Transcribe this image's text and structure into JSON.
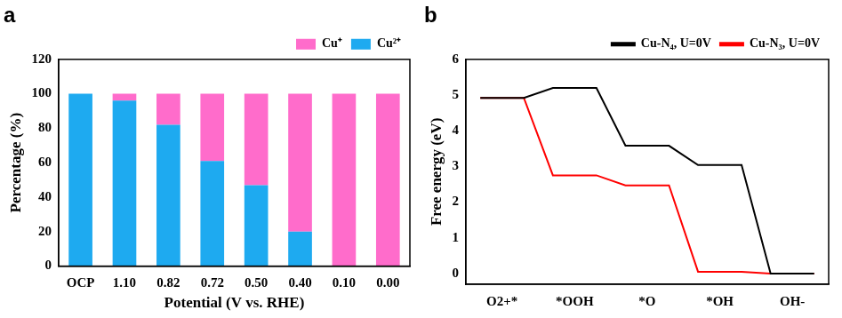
{
  "chart_data": [
    {
      "type": "bar",
      "title": "a",
      "x_label": "Potential (V vs. RHE)",
      "y_label": "Percentage (%)",
      "categories": [
        "OCP",
        "1.10",
        "0.82",
        "0.72",
        "0.50",
        "0.40",
        "0.10",
        "0.00"
      ],
      "series": [
        {
          "name": "Cu²⁺",
          "color": "#1eaaf0",
          "values": [
            100,
            96,
            82,
            61,
            47,
            20,
            0,
            0
          ]
        },
        {
          "name": "Cu⁺",
          "color": "#ff6ccb",
          "values": [
            0,
            4,
            18,
            39,
            53,
            80,
            100,
            100
          ]
        }
      ],
      "stacked": true,
      "ylim": [
        0,
        120
      ],
      "yticks": [
        0,
        20,
        40,
        60,
        80,
        100,
        120
      ],
      "grid": false,
      "legend": "upper right"
    },
    {
      "type": "line",
      "title": "b",
      "y_label": "Free energy (eV)",
      "categories": [
        "O2+*",
        "*OOH",
        "*O",
        "*OH",
        "OH-"
      ],
      "series": [
        {
          "name": "Cu-N₄, U=0V",
          "color": "#000000",
          "values": [
            4.92,
            5.2,
            3.58,
            3.04,
            0
          ]
        },
        {
          "name": "Cu-N₃, U=0V",
          "color": "#ff0000",
          "values": [
            4.92,
            2.75,
            2.47,
            0.05,
            0
          ]
        }
      ],
      "ylim": [
        -0.3,
        6
      ],
      "yticks": [
        0,
        1,
        2,
        3,
        4,
        5,
        6
      ],
      "grid": false,
      "legend": "upper right"
    }
  ]
}
